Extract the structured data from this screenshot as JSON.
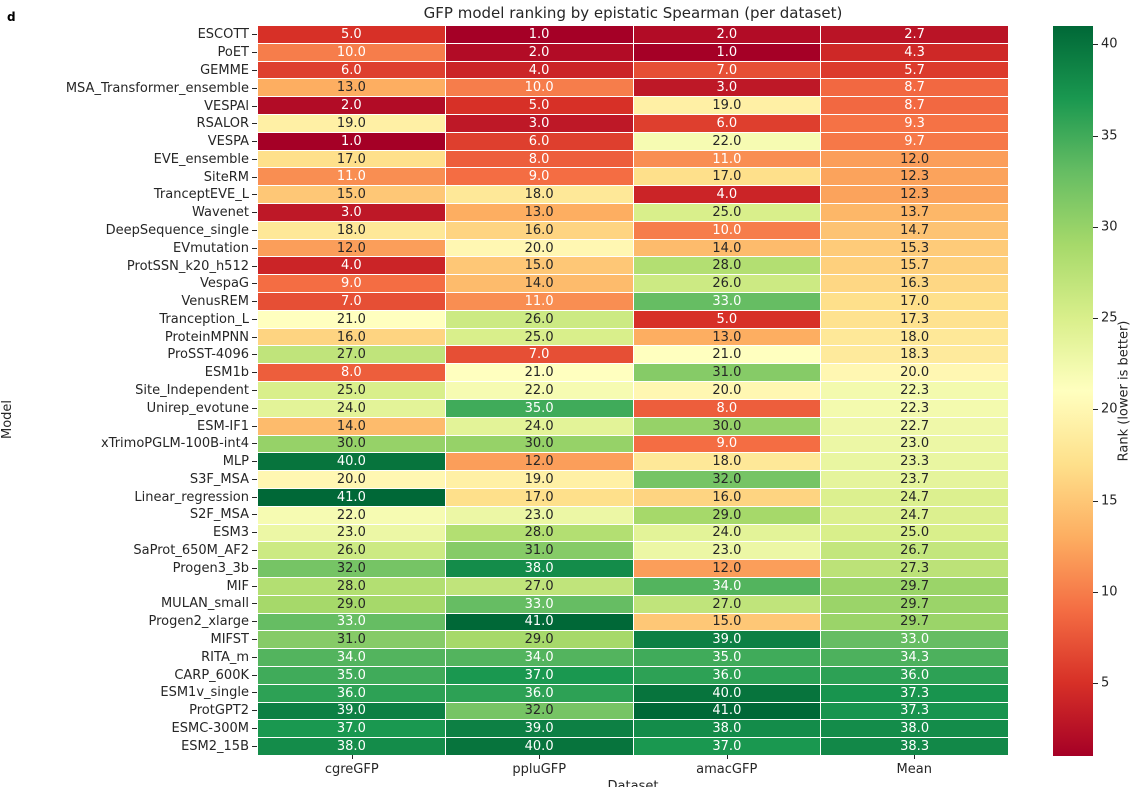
{
  "panel_label": "d",
  "chart_data": {
    "type": "heatmap",
    "title": "GFP model ranking by epistatic Spearman (per dataset)",
    "xlabel": "Dataset",
    "ylabel": "Model",
    "columns": [
      "cgreGFP",
      "ppluGFP",
      "amacGFP",
      "Mean"
    ],
    "rows": [
      {
        "model": "ESCOTT",
        "values": [
          5.0,
          1.0,
          2.0,
          2.7
        ]
      },
      {
        "model": "PoET",
        "values": [
          10.0,
          2.0,
          1.0,
          4.3
        ]
      },
      {
        "model": "GEMME",
        "values": [
          6.0,
          4.0,
          7.0,
          5.7
        ]
      },
      {
        "model": "MSA_Transformer_ensemble",
        "values": [
          13.0,
          10.0,
          3.0,
          8.7
        ]
      },
      {
        "model": "VESPAl",
        "values": [
          2.0,
          5.0,
          19.0,
          8.7
        ]
      },
      {
        "model": "RSALOR",
        "values": [
          19.0,
          3.0,
          6.0,
          9.3
        ]
      },
      {
        "model": "VESPA",
        "values": [
          1.0,
          6.0,
          22.0,
          9.7
        ]
      },
      {
        "model": "EVE_ensemble",
        "values": [
          17.0,
          8.0,
          11.0,
          12.0
        ]
      },
      {
        "model": "SiteRM",
        "values": [
          11.0,
          9.0,
          17.0,
          12.3
        ]
      },
      {
        "model": "TranceptEVE_L",
        "values": [
          15.0,
          18.0,
          4.0,
          12.3
        ]
      },
      {
        "model": "Wavenet",
        "values": [
          3.0,
          13.0,
          25.0,
          13.7
        ]
      },
      {
        "model": "DeepSequence_single",
        "values": [
          18.0,
          16.0,
          10.0,
          14.7
        ]
      },
      {
        "model": "EVmutation",
        "values": [
          12.0,
          20.0,
          14.0,
          15.3
        ]
      },
      {
        "model": "ProtSSN_k20_h512",
        "values": [
          4.0,
          15.0,
          28.0,
          15.7
        ]
      },
      {
        "model": "VespaG",
        "values": [
          9.0,
          14.0,
          26.0,
          16.3
        ]
      },
      {
        "model": "VenusREM",
        "values": [
          7.0,
          11.0,
          33.0,
          17.0
        ]
      },
      {
        "model": "Tranception_L",
        "values": [
          21.0,
          26.0,
          5.0,
          17.3
        ]
      },
      {
        "model": "ProteinMPNN",
        "values": [
          16.0,
          25.0,
          13.0,
          18.0
        ]
      },
      {
        "model": "ProSST-4096",
        "values": [
          27.0,
          7.0,
          21.0,
          18.3
        ]
      },
      {
        "model": "ESM1b",
        "values": [
          8.0,
          21.0,
          31.0,
          20.0
        ]
      },
      {
        "model": "Site_Independent",
        "values": [
          25.0,
          22.0,
          20.0,
          22.3
        ]
      },
      {
        "model": "Unirep_evotune",
        "values": [
          24.0,
          35.0,
          8.0,
          22.3
        ]
      },
      {
        "model": "ESM-IF1",
        "values": [
          14.0,
          24.0,
          30.0,
          22.7
        ]
      },
      {
        "model": "xTrimoPGLM-100B-int4",
        "values": [
          30.0,
          30.0,
          9.0,
          23.0
        ]
      },
      {
        "model": "MLP",
        "values": [
          40.0,
          12.0,
          18.0,
          23.3
        ]
      },
      {
        "model": "S3F_MSA",
        "values": [
          20.0,
          19.0,
          32.0,
          23.7
        ]
      },
      {
        "model": "Linear_regression",
        "values": [
          41.0,
          17.0,
          16.0,
          24.7
        ]
      },
      {
        "model": "S2F_MSA",
        "values": [
          22.0,
          23.0,
          29.0,
          24.7
        ]
      },
      {
        "model": "ESM3",
        "values": [
          23.0,
          28.0,
          24.0,
          25.0
        ]
      },
      {
        "model": "SaProt_650M_AF2",
        "values": [
          26.0,
          31.0,
          23.0,
          26.7
        ]
      },
      {
        "model": "Progen3_3b",
        "values": [
          32.0,
          38.0,
          12.0,
          27.3
        ]
      },
      {
        "model": "MIF",
        "values": [
          28.0,
          27.0,
          34.0,
          29.7
        ]
      },
      {
        "model": "MULAN_small",
        "values": [
          29.0,
          33.0,
          27.0,
          29.7
        ]
      },
      {
        "model": "Progen2_xlarge",
        "values": [
          33.0,
          41.0,
          15.0,
          29.7
        ]
      },
      {
        "model": "MIFST",
        "values": [
          31.0,
          29.0,
          39.0,
          33.0
        ]
      },
      {
        "model": "RITA_m",
        "values": [
          34.0,
          34.0,
          35.0,
          34.3
        ]
      },
      {
        "model": "CARP_600K",
        "values": [
          35.0,
          37.0,
          36.0,
          36.0
        ]
      },
      {
        "model": "ESM1v_single",
        "values": [
          36.0,
          36.0,
          40.0,
          37.3
        ]
      },
      {
        "model": "ProtGPT2",
        "values": [
          39.0,
          32.0,
          41.0,
          37.3
        ]
      },
      {
        "model": "ESMC-300M",
        "values": [
          37.0,
          39.0,
          38.0,
          38.0
        ]
      },
      {
        "model": "ESM2_15B",
        "values": [
          38.0,
          40.0,
          37.0,
          38.3
        ]
      }
    ],
    "vmin": 1,
    "vmax": 41,
    "colormap": "RdYlGn",
    "colormap_stops": [
      "#a50026",
      "#d73027",
      "#f46d43",
      "#fdae61",
      "#fee08b",
      "#ffffbf",
      "#d9ef8b",
      "#a6d96a",
      "#66bd63",
      "#1a9850",
      "#006837"
    ],
    "annotation_colors": {
      "light_text": "#ffffff",
      "dark_text": "#262626"
    },
    "colorbar": {
      "label": "Rank (lower is better)",
      "ticks": [
        5,
        10,
        15,
        20,
        25,
        30,
        35,
        40
      ]
    }
  }
}
